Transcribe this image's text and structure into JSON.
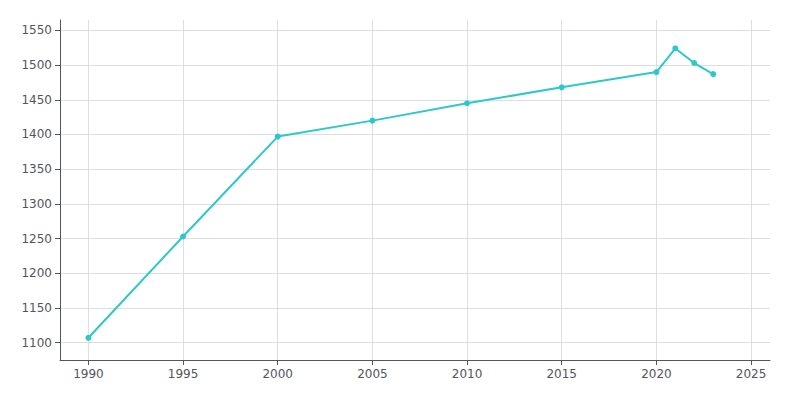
{
  "chart_data": {
    "type": "line",
    "x": [
      1990,
      1995,
      2000,
      2005,
      2010,
      2015,
      2020,
      2021,
      2022,
      2023
    ],
    "values": [
      1107,
      1253,
      1397,
      1420,
      1445,
      1468,
      1490,
      1524,
      1503,
      1487
    ],
    "color": "#2ec8c8",
    "marker": "circle",
    "xlim": [
      1988.5,
      2026
    ],
    "ylim": [
      1075,
      1565
    ],
    "xticks": [
      1990,
      1995,
      2000,
      2005,
      2010,
      2015,
      2020,
      2025
    ],
    "yticks": [
      1100,
      1150,
      1200,
      1250,
      1300,
      1350,
      1400,
      1450,
      1500,
      1550
    ],
    "grid": true
  }
}
